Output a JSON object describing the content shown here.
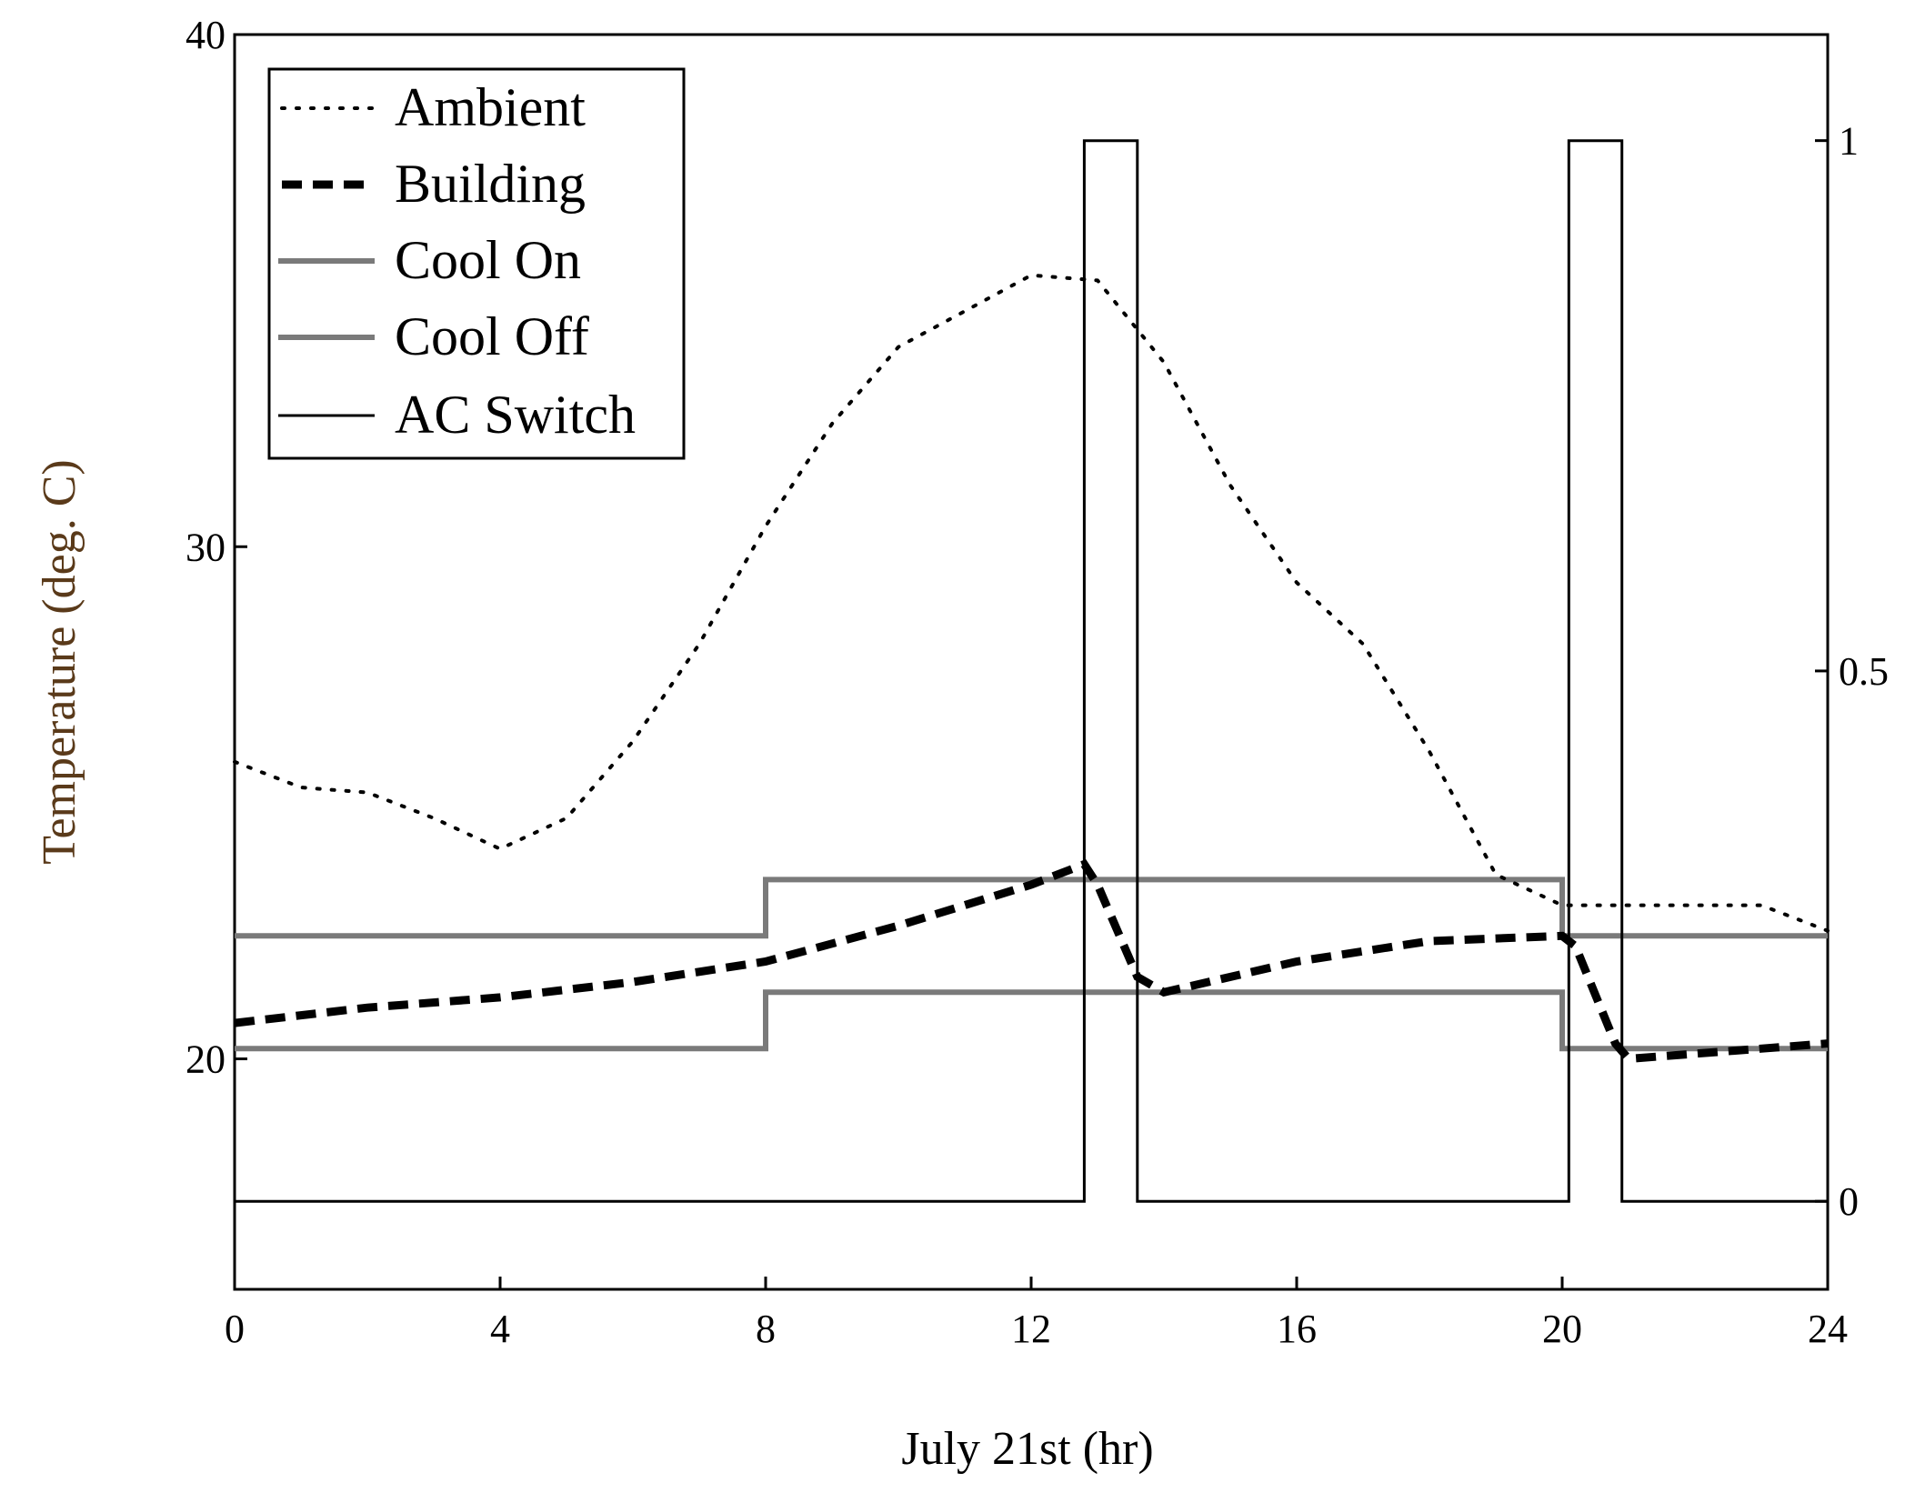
{
  "chart_data": {
    "type": "line",
    "title": "",
    "xlabel": "July 21st (hr)",
    "ylabel": "Temperature (deg. C)",
    "xlim": [
      0,
      24
    ],
    "ylim": [
      15.5,
      40
    ],
    "y2lim": [
      -0.083,
      1.1
    ],
    "x_ticks": [
      "0",
      "4",
      "8",
      "12",
      "16",
      "20",
      "24"
    ],
    "y_ticks": [
      "20",
      "30",
      "40"
    ],
    "y2_ticks": [
      "0",
      "0.5",
      "1"
    ],
    "legend_position": "top-left",
    "colors": {
      "ambient": "#000000",
      "building": "#000000",
      "cool_on": "#7a7a7a",
      "cool_off": "#7a7a7a",
      "ac_switch": "#000000"
    },
    "series": [
      {
        "name": "Ambient",
        "axis": "left",
        "style": "dotted",
        "points": [
          [
            0,
            25.8
          ],
          [
            1,
            25.3
          ],
          [
            2,
            25.2
          ],
          [
            3,
            24.7
          ],
          [
            4,
            24.1
          ],
          [
            5,
            24.7
          ],
          [
            6,
            26.2
          ],
          [
            7,
            28.1
          ],
          [
            8,
            30.4
          ],
          [
            9,
            32.4
          ],
          [
            10,
            33.9
          ],
          [
            11,
            34.6
          ],
          [
            12,
            35.3
          ],
          [
            13,
            35.2
          ],
          [
            14,
            33.6
          ],
          [
            15,
            31.2
          ],
          [
            16,
            29.3
          ],
          [
            17,
            28.1
          ],
          [
            18,
            26.0
          ],
          [
            19,
            23.6
          ],
          [
            20,
            23.0
          ],
          [
            21,
            23.0
          ],
          [
            22,
            23.0
          ],
          [
            23,
            23.0
          ],
          [
            24,
            22.5
          ]
        ]
      },
      {
        "name": "Building",
        "axis": "left",
        "style": "dashed",
        "points": [
          [
            0,
            20.7
          ],
          [
            2,
            21.0
          ],
          [
            4,
            21.2
          ],
          [
            6,
            21.5
          ],
          [
            8,
            21.9
          ],
          [
            10,
            22.6
          ],
          [
            12,
            23.4
          ],
          [
            12.8,
            23.8
          ],
          [
            13,
            23.4
          ],
          [
            13.6,
            21.6
          ],
          [
            14,
            21.3
          ],
          [
            16,
            21.9
          ],
          [
            18,
            22.3
          ],
          [
            20,
            22.4
          ],
          [
            20.2,
            22.2
          ],
          [
            20.8,
            20.3
          ],
          [
            21,
            20.0
          ],
          [
            22,
            20.1
          ],
          [
            24,
            20.3
          ]
        ]
      },
      {
        "name": "Cool On",
        "axis": "left",
        "style": "solid",
        "points": [
          [
            0,
            22.4
          ],
          [
            8,
            22.4
          ],
          [
            8,
            23.5
          ],
          [
            20,
            23.5
          ],
          [
            20,
            22.4
          ],
          [
            24,
            22.4
          ]
        ]
      },
      {
        "name": "Cool Off",
        "axis": "left",
        "style": "solid",
        "points": [
          [
            0,
            20.2
          ],
          [
            8,
            20.2
          ],
          [
            8,
            21.3
          ],
          [
            20,
            21.3
          ],
          [
            20,
            20.2
          ],
          [
            24,
            20.2
          ]
        ]
      },
      {
        "name": "AC Switch",
        "axis": "right",
        "style": "solid",
        "points": [
          [
            0,
            0
          ],
          [
            12.8,
            0
          ],
          [
            12.8,
            1
          ],
          [
            13.6,
            1
          ],
          [
            13.6,
            0
          ],
          [
            20.1,
            0
          ],
          [
            20.1,
            1
          ],
          [
            20.9,
            1
          ],
          [
            20.9,
            0
          ],
          [
            24,
            0
          ]
        ]
      }
    ]
  }
}
